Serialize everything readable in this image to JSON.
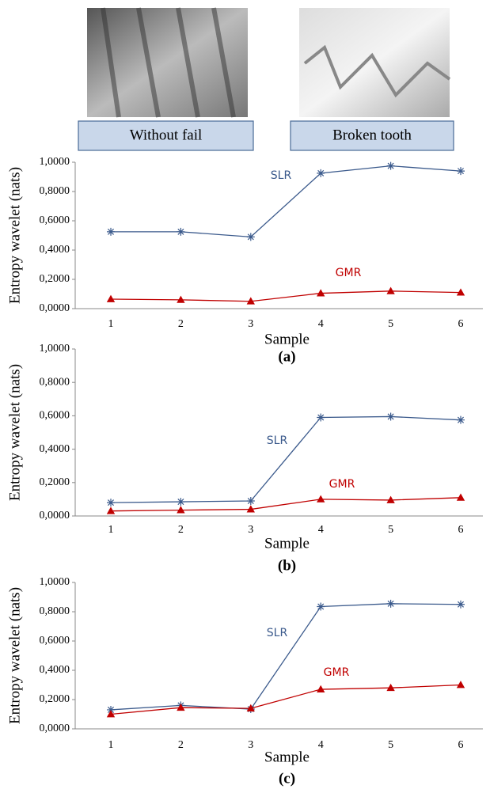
{
  "images": [
    {
      "label": "Without fail"
    },
    {
      "label": "Broken tooth"
    }
  ],
  "chart_data": [
    {
      "type": "line",
      "caption": "(a)",
      "ylabel": "Entropy wavelet (nats)",
      "xlabel": "Sample",
      "categories": [
        "1",
        "2",
        "3",
        "4",
        "5",
        "6"
      ],
      "ylim": [
        0,
        1
      ],
      "yticks": [
        {
          "value": 0,
          "label": "0,0000"
        },
        {
          "value": 0.2,
          "label": "0,2000"
        },
        {
          "value": 0.4,
          "label": "0,4000"
        },
        {
          "value": 0.6,
          "label": "0,6000"
        },
        {
          "value": 0.8,
          "label": "0,8000"
        },
        {
          "value": 1,
          "label": "1,0000"
        }
      ],
      "series": [
        {
          "name": "SLR",
          "color": "#3b5a8c",
          "marker": "asterisk",
          "values": [
            0.525,
            0.525,
            0.49,
            0.925,
            0.975,
            0.94
          ]
        },
        {
          "name": "GMR",
          "color": "#c00000",
          "marker": "triangle",
          "values": [
            0.065,
            0.06,
            0.05,
            0.105,
            0.12,
            0.11
          ]
        }
      ]
    },
    {
      "type": "line",
      "caption": "(b)",
      "ylabel": "Entropy wavelet (nats)",
      "xlabel": "Sample",
      "categories": [
        "1",
        "2",
        "3",
        "4",
        "5",
        "6"
      ],
      "ylim": [
        0,
        1
      ],
      "yticks": [
        {
          "value": 0,
          "label": "0,0000"
        },
        {
          "value": 0.2,
          "label": "0,2000"
        },
        {
          "value": 0.4,
          "label": "0,4000"
        },
        {
          "value": 0.6,
          "label": "0,6000"
        },
        {
          "value": 0.8,
          "label": "0,8000"
        },
        {
          "value": 1,
          "label": "1,0000"
        }
      ],
      "series": [
        {
          "name": "SLR",
          "color": "#3b5a8c",
          "marker": "asterisk",
          "values": [
            0.08,
            0.085,
            0.09,
            0.59,
            0.595,
            0.575
          ]
        },
        {
          "name": "GMR",
          "color": "#c00000",
          "marker": "triangle",
          "values": [
            0.03,
            0.035,
            0.04,
            0.1,
            0.095,
            0.11
          ]
        }
      ]
    },
    {
      "type": "line",
      "caption": "(c)",
      "ylabel": "Entropy wavelet (nats)",
      "xlabel": "Sample",
      "categories": [
        "1",
        "2",
        "3",
        "4",
        "5",
        "6"
      ],
      "ylim": [
        0,
        1
      ],
      "yticks": [
        {
          "value": 0,
          "label": "0,0000"
        },
        {
          "value": 0.2,
          "label": "0,2000"
        },
        {
          "value": 0.4,
          "label": "0,4000"
        },
        {
          "value": 0.6,
          "label": "0,6000"
        },
        {
          "value": 0.8,
          "label": "0,8000"
        },
        {
          "value": 1,
          "label": "1,0000"
        }
      ],
      "series": [
        {
          "name": "SLR",
          "color": "#3b5a8c",
          "marker": "asterisk",
          "values": [
            0.13,
            0.16,
            0.135,
            0.835,
            0.855,
            0.85
          ]
        },
        {
          "name": "GMR",
          "color": "#c00000",
          "marker": "triangle",
          "values": [
            0.1,
            0.145,
            0.14,
            0.27,
            0.28,
            0.3
          ]
        }
      ]
    }
  ]
}
